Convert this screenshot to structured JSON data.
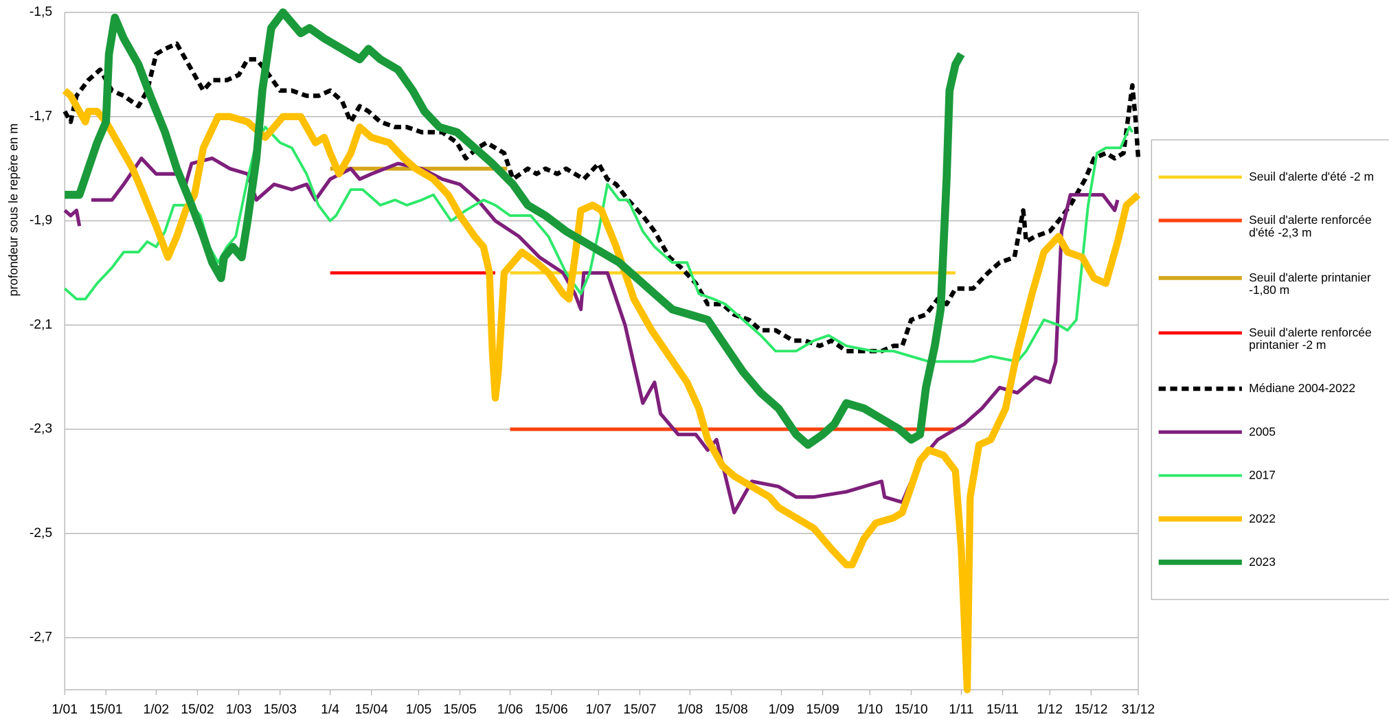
{
  "chart_data": {
    "type": "line",
    "y_label": "profondeur sous le repère en m",
    "xlim": [
      1,
      365
    ],
    "ylim": [
      -2.8,
      -1.5
    ],
    "grid": true,
    "legend": "right",
    "xticks": [
      {
        "value": 1,
        "label": "1/01"
      },
      {
        "value": 15,
        "label": "15/01"
      },
      {
        "value": 32,
        "label": "1/02"
      },
      {
        "value": 46,
        "label": "15/02"
      },
      {
        "value": 60,
        "label": "1/03"
      },
      {
        "value": 74,
        "label": "15/03"
      },
      {
        "value": 91,
        "label": "1/4"
      },
      {
        "value": 105,
        "label": "15/04"
      },
      {
        "value": 121,
        "label": "1/05"
      },
      {
        "value": 135,
        "label": "15/05"
      },
      {
        "value": 152,
        "label": "1/06"
      },
      {
        "value": 166,
        "label": "15/06"
      },
      {
        "value": 182,
        "label": "1/07"
      },
      {
        "value": 196,
        "label": "15/07"
      },
      {
        "value": 213,
        "label": "1/08"
      },
      {
        "value": 227,
        "label": "15/08"
      },
      {
        "value": 244,
        "label": "1/09"
      },
      {
        "value": 258,
        "label": "15/09"
      },
      {
        "value": 274,
        "label": "1/10"
      },
      {
        "value": 288,
        "label": "15/10"
      },
      {
        "value": 305,
        "label": "1/11"
      },
      {
        "value": 319,
        "label": "15/11"
      },
      {
        "value": 335,
        "label": "1/12"
      },
      {
        "value": 349,
        "label": "15/12"
      },
      {
        "value": 365,
        "label": "31/12"
      }
    ],
    "yticks": [
      {
        "value": -1.5,
        "label": "-1,5"
      },
      {
        "value": -1.7,
        "label": "-1,7"
      },
      {
        "value": -1.9,
        "label": "-1,9"
      },
      {
        "value": -2.1,
        "label": "-2,1"
      },
      {
        "value": -2.3,
        "label": "-2,3"
      },
      {
        "value": -2.5,
        "label": "-2,5"
      },
      {
        "value": -2.7,
        "label": "-2,7"
      }
    ],
    "series": [
      {
        "name": "Seuil d'alerte d'été -2 m",
        "color": "#ffd320",
        "x": [
          152,
          303
        ],
        "values": [
          -2,
          -2
        ]
      },
      {
        "name": "Seuil d'alerte renforcée d'été -2,3 m",
        "color": "#ff420e",
        "x": [
          152,
          303
        ],
        "values": [
          -2.3,
          -2.3
        ]
      },
      {
        "name": "Seuil d'alerte printanier -1,80 m",
        "color": "#d4a71b",
        "x": [
          91,
          151
        ],
        "values": [
          -1.8,
          -1.8
        ]
      },
      {
        "name": "Seuil d'alerte renforcée printanier -2 m",
        "color": "#ff0000",
        "x": [
          91,
          147
        ],
        "values": [
          -2,
          -2
        ]
      },
      {
        "name": "Médiane 2004-2022",
        "color": "#000000",
        "line_style": "dashed",
        "x": [
          1,
          3,
          5,
          9,
          13,
          17,
          21,
          26,
          29,
          32,
          35,
          39,
          42,
          45,
          48,
          51,
          56,
          60,
          63,
          66,
          69,
          74,
          78,
          83,
          87,
          91,
          95,
          98,
          101,
          104,
          108,
          113,
          117,
          122,
          126,
          129,
          134,
          137,
          141,
          144,
          147,
          150,
          153,
          158,
          161,
          164,
          168,
          171,
          174,
          177,
          182,
          185,
          188,
          192,
          197,
          201,
          206,
          210,
          215,
          219,
          224,
          228,
          233,
          237,
          242,
          248,
          252,
          257,
          261,
          266,
          272,
          278,
          282,
          285,
          288,
          293,
          297,
          300,
          303,
          306,
          309,
          314,
          318,
          323,
          326,
          327,
          330,
          335,
          338,
          342,
          347,
          350,
          354,
          357,
          360,
          363,
          364,
          365
        ],
        "values": [
          -1.69,
          -1.71,
          -1.66,
          -1.63,
          -1.61,
          -1.65,
          -1.66,
          -1.68,
          -1.65,
          -1.58,
          -1.57,
          -1.56,
          -1.59,
          -1.62,
          -1.65,
          -1.63,
          -1.63,
          -1.62,
          -1.59,
          -1.59,
          -1.61,
          -1.65,
          -1.65,
          -1.66,
          -1.66,
          -1.65,
          -1.67,
          -1.71,
          -1.68,
          -1.69,
          -1.71,
          -1.72,
          -1.72,
          -1.73,
          -1.73,
          -1.73,
          -1.75,
          -1.78,
          -1.76,
          -1.75,
          -1.76,
          -1.77,
          -1.82,
          -1.8,
          -1.81,
          -1.8,
          -1.81,
          -1.8,
          -1.81,
          -1.82,
          -1.79,
          -1.82,
          -1.83,
          -1.86,
          -1.89,
          -1.92,
          -1.97,
          -1.99,
          -2.02,
          -2.06,
          -2.06,
          -2.08,
          -2.09,
          -2.11,
          -2.11,
          -2.13,
          -2.13,
          -2.14,
          -2.13,
          -2.15,
          -2.15,
          -2.15,
          -2.14,
          -2.14,
          -2.09,
          -2.08,
          -2.05,
          -2.06,
          -2.03,
          -2.03,
          -2.03,
          -2,
          -1.98,
          -1.97,
          -1.88,
          -1.94,
          -1.93,
          -1.92,
          -1.9,
          -1.87,
          -1.82,
          -1.78,
          -1.77,
          -1.78,
          -1.77,
          -1.64,
          -1.7,
          -1.78
        ]
      },
      {
        "name": "2005",
        "color": "#7e1f7b",
        "x": [
          1,
          3,
          5,
          6,
          8,
          10,
          17,
          21,
          27,
          32,
          39,
          42,
          44,
          51,
          57,
          63,
          66,
          72,
          78,
          83,
          86,
          91,
          98,
          101,
          105,
          114,
          122,
          129,
          135,
          141,
          147,
          155,
          162,
          170,
          174,
          176,
          177,
          185,
          191,
          197,
          201,
          203,
          209,
          215,
          219,
          222,
          228,
          234,
          243,
          249,
          255,
          266,
          278,
          279,
          285,
          291,
          297,
          306,
          312,
          318,
          324,
          330,
          335,
          337,
          339,
          342,
          353,
          357,
          358
        ],
        "values": [
          -1.88,
          -1.89,
          -1.88,
          -1.91,
          null,
          -1.86,
          -1.86,
          -1.83,
          -1.78,
          -1.81,
          -1.81,
          -1.83,
          -1.79,
          -1.78,
          -1.8,
          -1.81,
          -1.86,
          -1.83,
          -1.84,
          -1.83,
          -1.86,
          -1.82,
          -1.8,
          -1.82,
          -1.81,
          -1.79,
          -1.8,
          -1.82,
          -1.83,
          -1.86,
          -1.9,
          -1.93,
          -1.97,
          -2,
          -2.04,
          -2.07,
          -2,
          -2,
          -2.1,
          -2.25,
          -2.21,
          -2.27,
          -2.31,
          -2.31,
          -2.34,
          -2.32,
          -2.46,
          -2.4,
          -2.41,
          -2.43,
          -2.43,
          -2.42,
          -2.4,
          -2.43,
          -2.44,
          -2.36,
          -2.32,
          -2.29,
          -2.26,
          -2.22,
          -2.23,
          -2.2,
          -2.21,
          -2.17,
          -1.92,
          -1.85,
          -1.85,
          -1.88,
          -1.86
        ]
      },
      {
        "name": "2017",
        "color": "#2ee86a",
        "x": [
          1,
          5,
          8,
          12,
          17,
          21,
          26,
          29,
          32,
          35,
          38,
          44,
          47,
          50,
          53,
          56,
          59,
          63,
          66,
          69,
          74,
          78,
          83,
          87,
          91,
          93,
          98,
          102,
          108,
          113,
          117,
          122,
          126,
          132,
          137,
          143,
          147,
          152,
          159,
          165,
          171,
          176,
          179,
          182,
          185,
          189,
          192,
          197,
          201,
          207,
          212,
          216,
          221,
          225,
          231,
          237,
          242,
          249,
          255,
          260,
          266,
          275,
          282,
          288,
          294,
          303,
          309,
          315,
          324,
          327,
          330,
          333,
          338,
          341,
          344,
          346,
          348,
          351,
          354,
          359,
          362,
          363
        ],
        "values": [
          -2.03,
          -2.05,
          -2.05,
          -2.02,
          -1.99,
          -1.96,
          -1.96,
          -1.94,
          -1.95,
          -1.92,
          -1.87,
          -1.87,
          -1.89,
          -1.95,
          -1.98,
          -1.95,
          -1.93,
          -1.82,
          -1.75,
          -1.72,
          -1.75,
          -1.76,
          -1.81,
          -1.87,
          -1.9,
          -1.89,
          -1.84,
          -1.84,
          -1.87,
          -1.86,
          -1.87,
          -1.86,
          -1.85,
          -1.9,
          -1.88,
          -1.86,
          -1.87,
          -1.89,
          -1.89,
          -1.93,
          -2,
          -2.04,
          -2,
          -1.92,
          -1.83,
          -1.86,
          -1.86,
          -1.92,
          -1.95,
          -1.98,
          -1.98,
          -2.04,
          -2.05,
          -2.06,
          -2.09,
          -2.12,
          -2.15,
          -2.15,
          -2.13,
          -2.12,
          -2.14,
          -2.15,
          -2.15,
          -2.16,
          -2.17,
          -2.17,
          -2.17,
          -2.16,
          -2.17,
          -2.15,
          -2.12,
          -2.09,
          -2.1,
          -2.11,
          -2.09,
          -1.98,
          -1.87,
          -1.77,
          -1.76,
          -1.76,
          -1.72,
          -1.73
        ]
      },
      {
        "name": "2022",
        "color": "#ffc000",
        "x": [
          1,
          3,
          5,
          8,
          9,
          12,
          15,
          20,
          24,
          27,
          32,
          36,
          39,
          42,
          45,
          48,
          53,
          57,
          63,
          69,
          72,
          75,
          81,
          86,
          89,
          91,
          94,
          98,
          101,
          105,
          111,
          116,
          120,
          126,
          131,
          135,
          140,
          143,
          145,
          146,
          147,
          148,
          150,
          153,
          156,
          161,
          165,
          170,
          172,
          174,
          176,
          180,
          183,
          188,
          194,
          200,
          206,
          212,
          216,
          219,
          224,
          228,
          234,
          240,
          243,
          249,
          255,
          261,
          266,
          268,
          272,
          276,
          282,
          285,
          288,
          291,
          294,
          299,
          303,
          305,
          307,
          308,
          311,
          315,
          320,
          324,
          329,
          333,
          338,
          341,
          346,
          350,
          354,
          358,
          361,
          365
        ],
        "values": [
          -1.65,
          -1.66,
          -1.68,
          -1.71,
          -1.69,
          -1.69,
          -1.71,
          -1.76,
          -1.8,
          -1.84,
          -1.91,
          -1.97,
          -1.93,
          -1.88,
          -1.85,
          -1.76,
          -1.7,
          -1.7,
          -1.71,
          -1.74,
          -1.72,
          -1.7,
          -1.7,
          -1.75,
          -1.74,
          -1.77,
          -1.81,
          -1.77,
          -1.72,
          -1.74,
          -1.75,
          -1.78,
          -1.8,
          -1.82,
          -1.85,
          -1.89,
          -1.93,
          -1.95,
          -2,
          -2.15,
          -2.24,
          -2.19,
          -2,
          -1.98,
          -1.96,
          -1.98,
          -2,
          -2.04,
          -2.05,
          -1.97,
          -1.88,
          -1.87,
          -1.88,
          -1.95,
          -2.05,
          -2.11,
          -2.16,
          -2.21,
          -2.26,
          -2.32,
          -2.37,
          -2.39,
          -2.41,
          -2.43,
          -2.45,
          -2.47,
          -2.49,
          -2.53,
          -2.56,
          -2.56,
          -2.51,
          -2.48,
          -2.47,
          -2.46,
          -2.41,
          -2.36,
          -2.34,
          -2.35,
          -2.38,
          -2.53,
          -2.8,
          -2.43,
          -2.33,
          -2.32,
          -2.26,
          -2.15,
          -2.04,
          -1.96,
          -1.93,
          -1.96,
          -1.97,
          -2.01,
          -2.02,
          -1.94,
          -1.87,
          -1.85
        ]
      },
      {
        "name": "2023",
        "color": "#1a9a3a",
        "x": [
          1,
          6,
          9,
          12,
          15,
          16,
          18,
          21,
          26,
          30,
          35,
          39,
          44,
          48,
          51,
          54,
          55,
          58,
          61,
          63,
          66,
          68,
          71,
          75,
          81,
          84,
          89,
          95,
          101,
          104,
          108,
          114,
          119,
          123,
          128,
          134,
          140,
          146,
          153,
          158,
          164,
          171,
          177,
          183,
          189,
          195,
          201,
          207,
          213,
          219,
          225,
          231,
          237,
          243,
          249,
          253,
          258,
          262,
          266,
          272,
          278,
          284,
          288,
          291,
          293,
          296,
          298,
          300,
          301,
          303,
          305
        ],
        "values": [
          -1.85,
          -1.85,
          -1.8,
          -1.75,
          -1.71,
          -1.58,
          -1.51,
          -1.55,
          -1.6,
          -1.66,
          -1.73,
          -1.8,
          -1.87,
          -1.93,
          -1.98,
          -2.01,
          -1.97,
          -1.95,
          -1.97,
          -1.9,
          -1.78,
          -1.65,
          -1.53,
          -1.5,
          -1.54,
          -1.53,
          -1.55,
          -1.57,
          -1.59,
          -1.57,
          -1.59,
          -1.61,
          -1.65,
          -1.69,
          -1.72,
          -1.73,
          -1.76,
          -1.79,
          -1.83,
          -1.87,
          -1.89,
          -1.92,
          -1.94,
          -1.96,
          -1.98,
          -2.01,
          -2.04,
          -2.07,
          -2.08,
          -2.09,
          -2.14,
          -2.19,
          -2.23,
          -2.26,
          -2.31,
          -2.33,
          -2.31,
          -2.29,
          -2.25,
          -2.26,
          -2.28,
          -2.3,
          -2.32,
          -2.31,
          -2.22,
          -2.14,
          -2.07,
          -1.82,
          -1.65,
          -1.6,
          -1.58
        ]
      }
    ]
  }
}
